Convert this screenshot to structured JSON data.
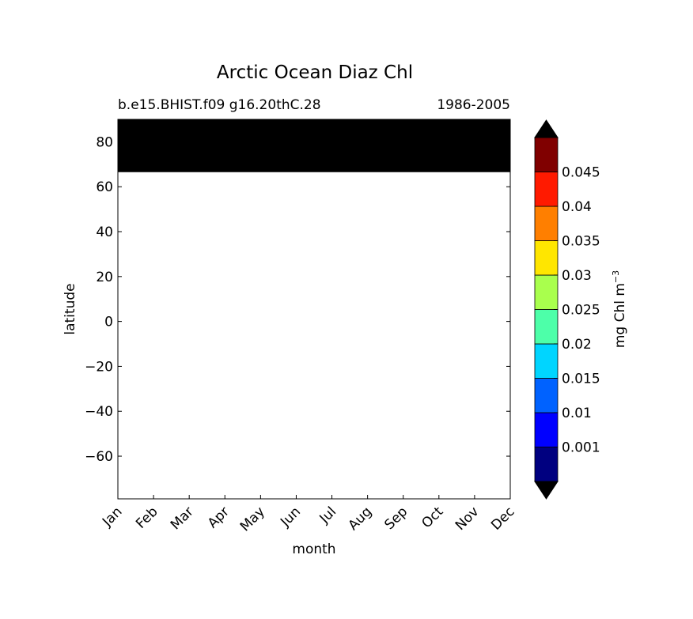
{
  "chart_data": {
    "type": "heatmap",
    "title": "Arctic Ocean Diaz Chl",
    "subtitle_left": "b.e15.BHIST.f09 g16.20thC.28",
    "subtitle_right": "1986-2005",
    "xlabel": "month",
    "ylabel": "latitude",
    "x_categories": [
      "Jan",
      "Feb",
      "Mar",
      "Apr",
      "May",
      "Jun",
      "Jul",
      "Aug",
      "Sep",
      "Oct",
      "Nov",
      "Dec"
    ],
    "ylim": [
      -79,
      90
    ],
    "yticks": [
      "80",
      "60",
      "40",
      "20",
      "0",
      "−20",
      "−40",
      "−60"
    ],
    "ytick_values": [
      80,
      60,
      40,
      20,
      0,
      -20,
      -40,
      -60
    ],
    "filled_region": {
      "lat_min": 66.5,
      "lat_max": 90,
      "color": "#000000",
      "months": "Jan–Dec"
    },
    "colorbar": {
      "label": "mg Chl m",
      "label_superscript": "−3",
      "extend": "both",
      "ticks": [
        "0.001",
        "0.01",
        "0.015",
        "0.02",
        "0.025",
        "0.03",
        "0.035",
        "0.04",
        "0.045"
      ],
      "colors": [
        "#000080",
        "#0000ff",
        "#0062ff",
        "#00d5ff",
        "#4dffa9",
        "#a9ff4d",
        "#ffe600",
        "#ff7f00",
        "#ff1a00",
        "#800000"
      ],
      "under_color": "#000000",
      "over_color": "#000000"
    }
  }
}
